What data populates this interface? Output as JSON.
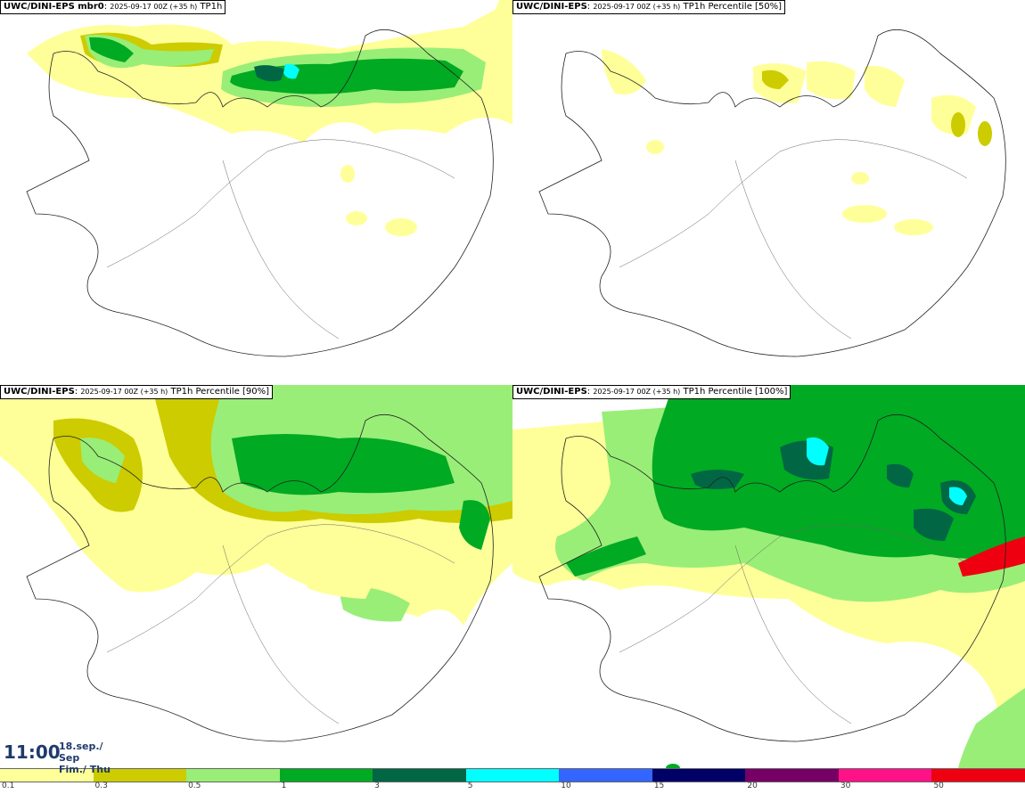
{
  "panels": [
    {
      "title_bold": "UWC/DINI-EPS mbr0",
      "title_rest": ": ",
      "meta": "2025-09-17 00Z (+35 h)",
      "field": " TP1h"
    },
    {
      "title_bold": "UWC/DINI-EPS",
      "title_rest": ": ",
      "meta": "2025-09-17 00Z (+35 h)",
      "field": " TP1h Percentile [50%]"
    },
    {
      "title_bold": "UWC/DINI-EPS",
      "title_rest": ": ",
      "meta": "2025-09-17 00Z (+35 h)",
      "field": " TP1h Percentile [90%]"
    },
    {
      "title_bold": "UWC/DINI-EPS",
      "title_rest": ": ",
      "meta": "2025-09-17 00Z (+35 h)",
      "field": " TP1h Percentile [100%]"
    }
  ],
  "valid_time": {
    "time": "11:00",
    "date_line1": "18.sep./ Sep",
    "date_line2": "Fim./ Thu"
  },
  "colorbar": {
    "labels": [
      "0.1",
      "0.3",
      "0.5",
      "1",
      "3",
      "5",
      "10",
      "15",
      "20",
      "30",
      "50"
    ],
    "colors": [
      "#ffff99",
      "#cccc00",
      "#99ee77",
      "#00aa22",
      "#006644",
      "#00ffff",
      "#3366ff",
      "#000066",
      "#770066",
      "#ff1188",
      "#ee0011"
    ]
  }
}
